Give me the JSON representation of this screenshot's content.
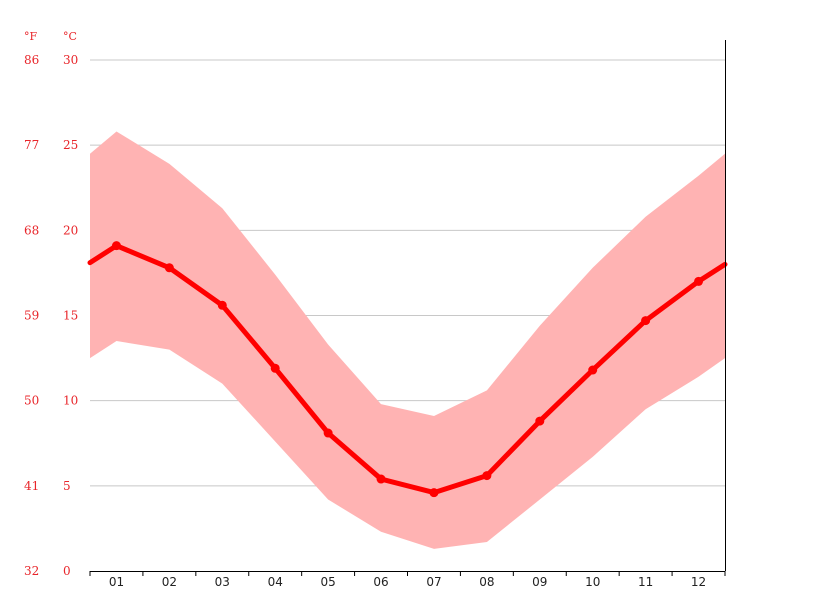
{
  "chart_data": {
    "type": "line",
    "title": "",
    "xlabel": "",
    "ylabel": "",
    "unit_f": "°F",
    "unit_c": "°C",
    "categories": [
      "01",
      "02",
      "03",
      "04",
      "05",
      "06",
      "07",
      "08",
      "09",
      "10",
      "11",
      "12"
    ],
    "y_ticks_c": [
      "0",
      "5",
      "10",
      "15",
      "20",
      "25",
      "30"
    ],
    "y_ticks_f": [
      "32",
      "41",
      "50",
      "59",
      "68",
      "77",
      "86"
    ],
    "ylim": [
      0,
      30
    ],
    "grid": true,
    "series": [
      {
        "role": "mean",
        "values": [
          19.1,
          17.8,
          15.6,
          11.9,
          8.1,
          5.4,
          4.6,
          5.6,
          8.8,
          11.8,
          14.7,
          17.0
        ]
      },
      {
        "role": "max",
        "values": [
          25.8,
          23.9,
          21.3,
          17.4,
          13.3,
          9.8,
          9.1,
          10.6,
          14.4,
          17.8,
          20.8,
          23.2
        ]
      },
      {
        "role": "min",
        "values": [
          13.5,
          13.0,
          11.0,
          7.6,
          4.2,
          2.3,
          1.3,
          1.7,
          4.2,
          6.7,
          9.5,
          11.4
        ]
      }
    ],
    "edge_values": {
      "mean": [
        18.1,
        18.0
      ],
      "max": [
        24.5,
        24.5
      ],
      "min": [
        12.5,
        12.5
      ]
    },
    "colors": {
      "line": "#ff0000",
      "band": "#ffb3b3",
      "tick_text": "#e8252a"
    }
  }
}
